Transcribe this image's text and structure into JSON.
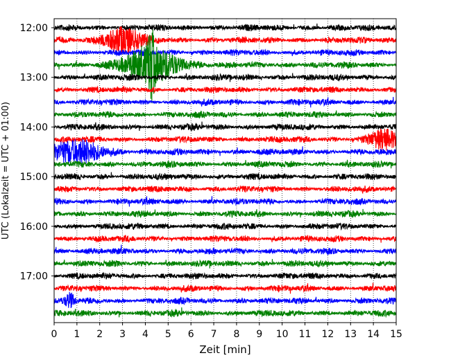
{
  "chart_data": {
    "type": "line",
    "title": "",
    "xlabel": "Zeit  [min]",
    "ylabel": "UTC (Lokalzeit = UTC + 01:00)",
    "xlim": [
      0,
      15
    ],
    "x_ticks": [
      0,
      1,
      2,
      3,
      4,
      5,
      6,
      7,
      8,
      9,
      10,
      11,
      12,
      13,
      14,
      15
    ],
    "y_tick_labels": [
      "12:00",
      "13:00",
      "14:00",
      "15:00",
      "16:00",
      "17:00"
    ],
    "trace_colors": [
      "#000000",
      "#ff0000",
      "#0000ff",
      "#008000"
    ],
    "grid": "vertical dotted",
    "traces_start": "12:00",
    "trace_interval_minutes": 15,
    "trace_count": 24,
    "events": [
      {
        "trace": 1,
        "center_min": 3.0,
        "width_min": 0.9,
        "amplitude": 1.8
      },
      {
        "trace": 3,
        "center_min": 4.3,
        "width_min": 1.3,
        "amplitude": 2.4
      },
      {
        "trace": 3,
        "center_min": 4.25,
        "width_min": 0.15,
        "amplitude": 3.5
      },
      {
        "trace": 9,
        "center_min": 14.4,
        "width_min": 0.6,
        "amplitude": 1.4
      },
      {
        "trace": 10,
        "center_min": 1.0,
        "width_min": 1.2,
        "amplitude": 1.6
      },
      {
        "trace": 22,
        "center_min": 0.7,
        "width_min": 0.2,
        "amplitude": 1.0
      }
    ]
  }
}
